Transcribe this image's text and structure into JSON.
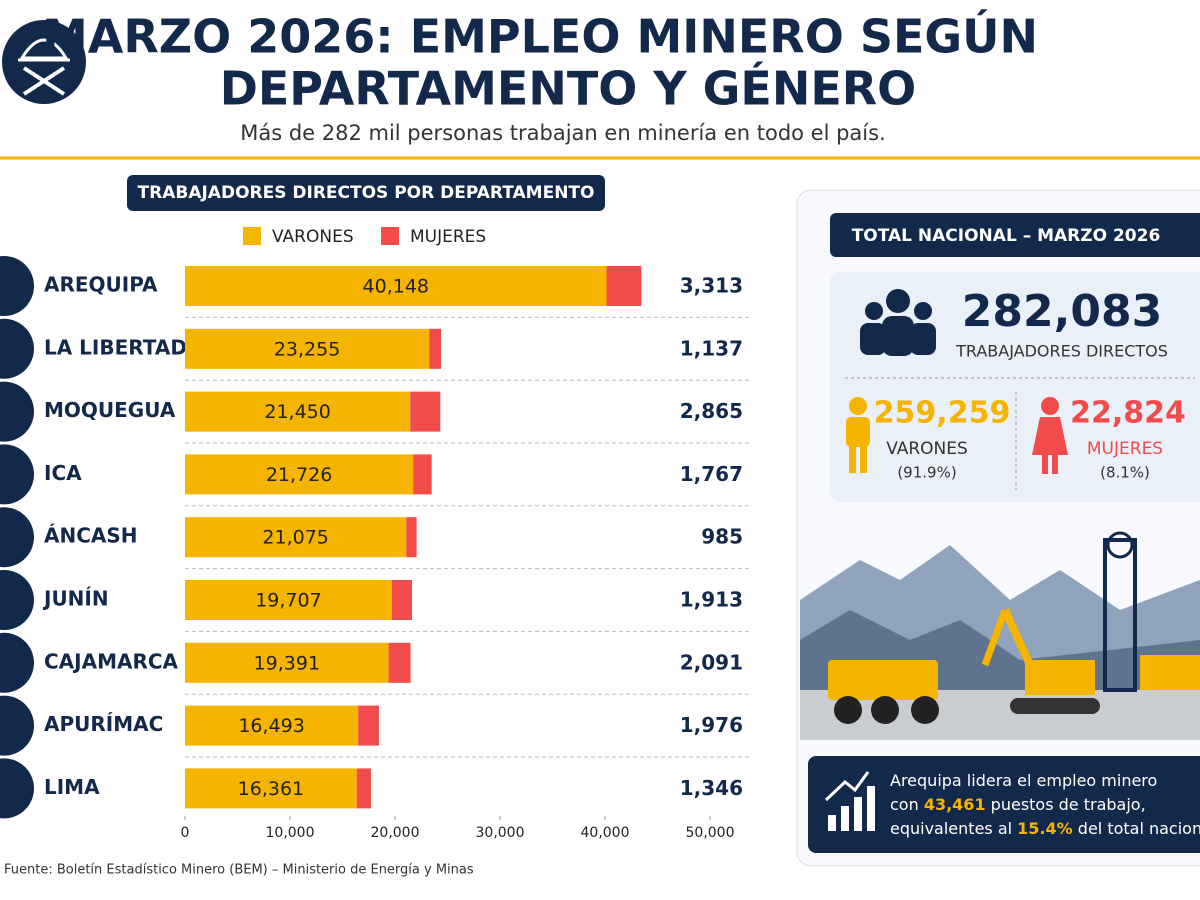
{
  "header": {
    "title_lines": [
      "MARZO 2026: EMPLEO MINERO SEGÚN",
      "DEPARTAMENTO Y GÉNERO"
    ],
    "subtitle": "Más de 282 mil personas trabajan en minería en todo el país."
  },
  "chart_data": {
    "type": "bar",
    "orientation": "horizontal",
    "stacked": true,
    "title": "TRABAJADORES DIRECTOS POR DEPARTAMENTO",
    "categories": [
      "AREQUIPA",
      "LA LIBERTAD",
      "MOQUEGUA",
      "ICA",
      "ÁNCASH",
      "JUNÍN",
      "CAJAMARCA",
      "APURÍMAC",
      "LIMA"
    ],
    "series": [
      {
        "name": "VARONES",
        "color": "#f5b400",
        "values": [
          40148,
          23255,
          21450,
          21726,
          21075,
          19707,
          19391,
          16493,
          16361
        ],
        "value_labels": [
          "40,148",
          "23,255",
          "21,450",
          "21,726",
          "21,075",
          "19,707",
          "19,391",
          "16,493",
          "16,361"
        ]
      },
      {
        "name": "MUJERES",
        "color": "#f24b4b",
        "values": [
          3313,
          1137,
          2865,
          1767,
          985,
          1913,
          2091,
          1976,
          1346
        ],
        "value_labels": [
          "3,313",
          "1,137",
          "2,865",
          "1,767",
          "985",
          "1,913",
          "2,091",
          "1,976",
          "1,346"
        ]
      }
    ],
    "xlim": [
      0,
      50000
    ],
    "xticks": [
      0,
      {
        "value": 10000,
        "label": "10,000"
      },
      {
        "value": 20000,
        "label": "20,000"
      },
      {
        "value": 30000,
        "label": "30,000"
      },
      {
        "value": 40000,
        "label": "40,000"
      },
      {
        "value": 50000,
        "label": "50,000"
      }
    ]
  },
  "summary": {
    "title": "TOTAL NACIONAL – MARZO 2026",
    "total": "282,083",
    "total_label": "TRABAJADORES DIRECTOS",
    "men": {
      "value": "259,259",
      "label": "VARONES",
      "share": "(91.9%)"
    },
    "women": {
      "value": "22,824",
      "label": "MUJERES",
      "share": "(8.1%)"
    },
    "callout": {
      "line1": "Arequipa lidera el empleo minero",
      "line2a": "con",
      "line2b": "43,461",
      "line2c": "puestos de trabajo,",
      "line3a": "equivalentes al",
      "line3b": "15.4%",
      "line3c": "del total nacional."
    }
  },
  "footnote": "Fuente: Boletín Estadístico Minero (BEM) – Ministerio de Energía y Minas"
}
